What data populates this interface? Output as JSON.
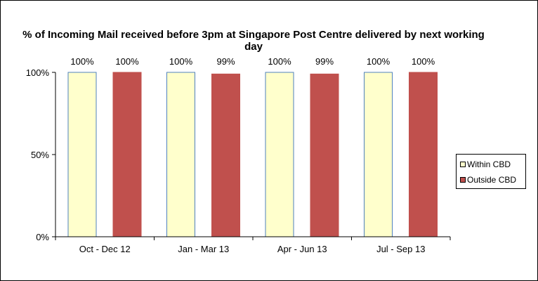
{
  "chart_data": {
    "type": "bar",
    "title": "% of Incoming Mail received before 3pm at Singapore Post Centre delivered by next working day",
    "categories": [
      "Oct - Dec 12",
      "Jan - Mar 13",
      "Apr - Jun 13",
      "Jul - Sep 13"
    ],
    "series": [
      {
        "name": "Within CBD",
        "values": [
          100,
          100,
          100,
          100
        ],
        "data_labels": [
          "100%",
          "100%",
          "100%",
          "100%"
        ],
        "color": "#FFFFCC",
        "border_color": "#4F81BD"
      },
      {
        "name": "Outside CBD",
        "values": [
          100,
          99,
          99,
          100
        ],
        "data_labels": [
          "100%",
          "99%",
          "99%",
          "100%"
        ],
        "color": "#C0504D",
        "border_color": "#C0504D"
      }
    ],
    "y_ticks": [
      0,
      50,
      100
    ],
    "y_tick_labels": [
      "0%",
      "50%",
      "100%"
    ],
    "ylim": [
      0,
      100
    ],
    "grid": false,
    "legend_position": "right"
  }
}
